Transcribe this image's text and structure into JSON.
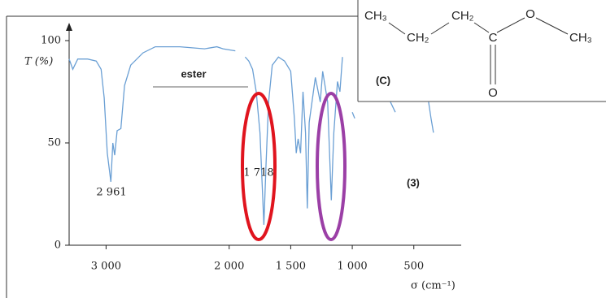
{
  "chart_data": {
    "type": "line",
    "y_label": "T (%)",
    "x_label": "σ (cm⁻¹)",
    "xlim": [
      3300,
      115
    ],
    "ylim": [
      0,
      100
    ],
    "xticks": [
      {
        "value": 3000,
        "label": "3 000"
      },
      {
        "value": 2000,
        "label": "2 000"
      },
      {
        "value": 1500,
        "label": "1 500"
      },
      {
        "value": 1000,
        "label": "1 000"
      },
      500
    ],
    "yticks": [
      0,
      50,
      100
    ],
    "x": [
      3300,
      3270,
      3230,
      3150,
      3080,
      3040,
      3015,
      2990,
      2961,
      2945,
      2930,
      2910,
      2880,
      2850,
      2800,
      2700,
      2600,
      2400,
      2200,
      2100,
      2050,
      1950,
      1900,
      1870,
      1840,
      1810,
      1780,
      1750,
      1718,
      1700,
      1680,
      1650,
      1600,
      1550,
      1500,
      1470,
      1455,
      1440,
      1420,
      1400,
      1380,
      1365,
      1350,
      1300,
      1260,
      1240,
      1200,
      1170,
      1150,
      1120,
      1100,
      1080,
      1050,
      1000,
      980,
      700,
      690,
      650,
      400,
      380,
      360,
      340
    ],
    "series": [
      {
        "color": "#6a9fd4",
        "values": [
          91,
          86,
          91,
          91,
          90,
          86,
          72,
          45,
          31,
          50,
          44,
          56,
          57,
          78,
          88,
          94,
          97,
          97,
          96,
          97,
          96,
          95,
          null,
          92,
          90,
          86,
          75,
          55,
          10,
          40,
          70,
          88,
          92,
          90,
          85,
          62,
          45,
          52,
          45,
          75,
          55,
          18,
          60,
          82,
          70,
          85,
          70,
          22,
          55,
          80,
          75,
          92,
          null,
          65,
          62,
          null,
          70,
          65,
          null,
          70,
          62,
          55
        ]
      }
    ],
    "annotations": [
      "2 961",
      "1 718",
      "ester",
      "(C)",
      "(3)"
    ],
    "structure": [
      "CH₃",
      "CH₂",
      "CH₂",
      "C",
      "O",
      "CH₃",
      "O"
    ]
  }
}
